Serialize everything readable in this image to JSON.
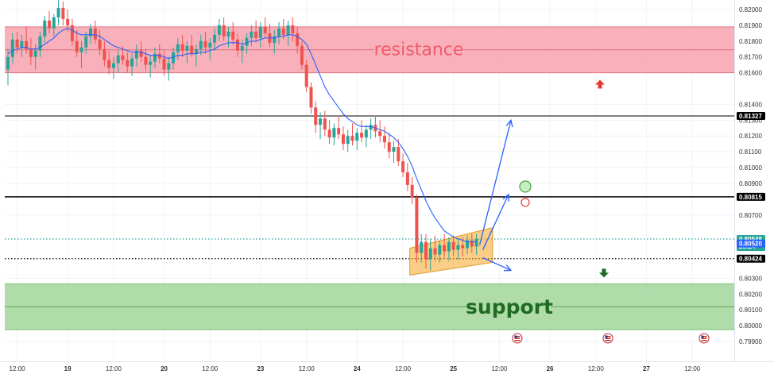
{
  "chart_data": {
    "type": "candlestick",
    "y_axis": {
      "position": "right",
      "range": [
        0.7985,
        0.8205
      ],
      "tick_labels": [
        "0.82000",
        "0.81900",
        "0.81800",
        "0.81700",
        "0.81600",
        "0.81400",
        "0.81300",
        "0.81200",
        "0.81100",
        "0.81000",
        "0.80900",
        "0.80700",
        "0.80300",
        "0.80200",
        "0.80100",
        "0.80000",
        "0.79900"
      ],
      "tick_values": [
        0.82,
        0.819,
        0.818,
        0.817,
        0.816,
        0.814,
        0.813,
        0.812,
        0.811,
        0.81,
        0.809,
        0.807,
        0.803,
        0.802,
        0.801,
        0.8,
        0.799
      ]
    },
    "x_axis": {
      "tick_labels": [
        "12:00",
        "19",
        "12:00",
        "20",
        "12:00",
        "23",
        "12:00",
        "24",
        "12:00",
        "25",
        "12:00",
        "26",
        "12:00",
        "27",
        "12:00"
      ],
      "tick_index": [
        2,
        13,
        23,
        34,
        44,
        55,
        65,
        76,
        86,
        97,
        107,
        118,
        128,
        139,
        149
      ]
    },
    "ohlc": [
      [
        0.8162,
        0.8175,
        0.8152,
        0.817
      ],
      [
        0.817,
        0.8185,
        0.8166,
        0.8181
      ],
      [
        0.8181,
        0.8186,
        0.8172,
        0.8176
      ],
      [
        0.8176,
        0.8184,
        0.817,
        0.818
      ],
      [
        0.818,
        0.8189,
        0.8172,
        0.8175
      ],
      [
        0.8175,
        0.8182,
        0.8165,
        0.817
      ],
      [
        0.817,
        0.8178,
        0.8162,
        0.8174
      ],
      [
        0.8174,
        0.8186,
        0.817,
        0.8183
      ],
      [
        0.8183,
        0.8196,
        0.8179,
        0.8193
      ],
      [
        0.8193,
        0.8199,
        0.8185,
        0.8188
      ],
      [
        0.8188,
        0.8197,
        0.8183,
        0.8195
      ],
      [
        0.8195,
        0.8206,
        0.819,
        0.8201
      ],
      [
        0.8201,
        0.8205,
        0.819,
        0.8194
      ],
      [
        0.8194,
        0.82,
        0.8186,
        0.819
      ],
      [
        0.819,
        0.8194,
        0.8177,
        0.818
      ],
      [
        0.818,
        0.8187,
        0.817,
        0.8173
      ],
      [
        0.8173,
        0.818,
        0.8163,
        0.8176
      ],
      [
        0.8176,
        0.8186,
        0.8172,
        0.8183
      ],
      [
        0.8183,
        0.8191,
        0.8178,
        0.8188
      ],
      [
        0.8188,
        0.8193,
        0.8178,
        0.8181
      ],
      [
        0.8181,
        0.8187,
        0.8171,
        0.8175
      ],
      [
        0.8175,
        0.818,
        0.8164,
        0.8168
      ],
      [
        0.8168,
        0.8174,
        0.8159,
        0.8163
      ],
      [
        0.8163,
        0.817,
        0.8156,
        0.8166
      ],
      [
        0.8166,
        0.8174,
        0.816,
        0.8171
      ],
      [
        0.8171,
        0.8177,
        0.8165,
        0.8168
      ],
      [
        0.8168,
        0.8173,
        0.816,
        0.8164
      ],
      [
        0.8164,
        0.8172,
        0.8158,
        0.8169
      ],
      [
        0.8169,
        0.8178,
        0.8164,
        0.8174
      ],
      [
        0.8174,
        0.818,
        0.8167,
        0.817
      ],
      [
        0.817,
        0.8175,
        0.8161,
        0.8165
      ],
      [
        0.8165,
        0.8171,
        0.8157,
        0.8167
      ],
      [
        0.8167,
        0.8176,
        0.8163,
        0.8172
      ],
      [
        0.8172,
        0.8178,
        0.8166,
        0.8169
      ],
      [
        0.8169,
        0.8174,
        0.8158,
        0.8162
      ],
      [
        0.8162,
        0.817,
        0.8155,
        0.8166
      ],
      [
        0.8166,
        0.8176,
        0.8162,
        0.8173
      ],
      [
        0.8173,
        0.8182,
        0.8168,
        0.8178
      ],
      [
        0.8178,
        0.8184,
        0.817,
        0.8174
      ],
      [
        0.8174,
        0.818,
        0.8166,
        0.8177
      ],
      [
        0.8177,
        0.8184,
        0.817,
        0.8172
      ],
      [
        0.8172,
        0.8178,
        0.8164,
        0.8175
      ],
      [
        0.8175,
        0.8184,
        0.8171,
        0.818
      ],
      [
        0.818,
        0.8186,
        0.8172,
        0.8176
      ],
      [
        0.8176,
        0.8182,
        0.8168,
        0.8179
      ],
      [
        0.8179,
        0.8188,
        0.8174,
        0.8184
      ],
      [
        0.8184,
        0.8194,
        0.818,
        0.819
      ],
      [
        0.819,
        0.8195,
        0.818,
        0.8183
      ],
      [
        0.8183,
        0.8189,
        0.8176,
        0.8186
      ],
      [
        0.8186,
        0.8192,
        0.8178,
        0.8181
      ],
      [
        0.8181,
        0.8185,
        0.817,
        0.8174
      ],
      [
        0.8174,
        0.8181,
        0.8166,
        0.8177
      ],
      [
        0.8177,
        0.8185,
        0.8172,
        0.8182
      ],
      [
        0.8182,
        0.819,
        0.8177,
        0.8186
      ],
      [
        0.8186,
        0.8193,
        0.8179,
        0.8182
      ],
      [
        0.8182,
        0.8192,
        0.8176,
        0.8189
      ],
      [
        0.8189,
        0.8195,
        0.8182,
        0.8185
      ],
      [
        0.8185,
        0.8191,
        0.8176,
        0.8179
      ],
      [
        0.8179,
        0.8187,
        0.8172,
        0.8183
      ],
      [
        0.8183,
        0.8192,
        0.8178,
        0.8188
      ],
      [
        0.8188,
        0.8194,
        0.8181,
        0.8184
      ],
      [
        0.8184,
        0.8193,
        0.8177,
        0.819
      ],
      [
        0.819,
        0.8195,
        0.818,
        0.8185
      ],
      [
        0.8185,
        0.8189,
        0.8172,
        0.8177
      ],
      [
        0.8177,
        0.818,
        0.8162,
        0.8165
      ],
      [
        0.8165,
        0.8168,
        0.8148,
        0.8151
      ],
      [
        0.8151,
        0.8154,
        0.8134,
        0.8138
      ],
      [
        0.8138,
        0.8142,
        0.8122,
        0.8127
      ],
      [
        0.8127,
        0.8135,
        0.8118,
        0.8131
      ],
      [
        0.8131,
        0.8136,
        0.812,
        0.8124
      ],
      [
        0.8124,
        0.813,
        0.8115,
        0.8119
      ],
      [
        0.8119,
        0.8128,
        0.8114,
        0.8125
      ],
      [
        0.8125,
        0.8133,
        0.8118,
        0.8121
      ],
      [
        0.8121,
        0.8126,
        0.8111,
        0.8115
      ],
      [
        0.8115,
        0.8124,
        0.811,
        0.812
      ],
      [
        0.812,
        0.8128,
        0.8114,
        0.8117
      ],
      [
        0.8117,
        0.8125,
        0.8111,
        0.8122
      ],
      [
        0.8122,
        0.813,
        0.8116,
        0.8119
      ],
      [
        0.8119,
        0.8127,
        0.8113,
        0.8124
      ],
      [
        0.8124,
        0.8131,
        0.8118,
        0.8127
      ],
      [
        0.8127,
        0.8133,
        0.8119,
        0.8123
      ],
      [
        0.8123,
        0.813,
        0.8116,
        0.812
      ],
      [
        0.812,
        0.8126,
        0.8112,
        0.8116
      ],
      [
        0.8116,
        0.8122,
        0.8106,
        0.811
      ],
      [
        0.811,
        0.8117,
        0.8103,
        0.8113
      ],
      [
        0.8113,
        0.8118,
        0.8101,
        0.8104
      ],
      [
        0.8104,
        0.8109,
        0.8094,
        0.8097
      ],
      [
        0.8097,
        0.8103,
        0.8085,
        0.8089
      ],
      [
        0.8089,
        0.8094,
        0.8077,
        0.8081
      ],
      [
        0.8081,
        0.8083,
        0.804,
        0.8046
      ],
      [
        0.8046,
        0.8058,
        0.804,
        0.8053
      ],
      [
        0.8053,
        0.8058,
        0.8036,
        0.8042
      ],
      [
        0.8042,
        0.8055,
        0.8035,
        0.8049
      ],
      [
        0.8049,
        0.8057,
        0.8041,
        0.8045
      ],
      [
        0.8045,
        0.8054,
        0.804,
        0.8051
      ],
      [
        0.8051,
        0.8058,
        0.8043,
        0.8047
      ],
      [
        0.8047,
        0.8056,
        0.8041,
        0.8053
      ],
      [
        0.8053,
        0.8057,
        0.8044,
        0.8048
      ],
      [
        0.8048,
        0.8055,
        0.8042,
        0.8051
      ],
      [
        0.8051,
        0.8056,
        0.8044,
        0.8049
      ],
      [
        0.8049,
        0.8057,
        0.8045,
        0.8054
      ],
      [
        0.8054,
        0.8058,
        0.8046,
        0.805
      ],
      [
        0.805,
        0.8058,
        0.8045,
        0.8055
      ]
    ],
    "ema": [
      0.8172,
      0.8174,
      0.8175,
      0.8176,
      0.8176,
      0.8175,
      0.8175,
      0.8176,
      0.8178,
      0.818,
      0.8182,
      0.8185,
      0.8187,
      0.8188,
      0.8187,
      0.8185,
      0.8184,
      0.8184,
      0.8184,
      0.8184,
      0.8183,
      0.8181,
      0.8179,
      0.8177,
      0.8176,
      0.8175,
      0.8174,
      0.8173,
      0.8173,
      0.8173,
      0.8172,
      0.8171,
      0.8171,
      0.8171,
      0.817,
      0.8169,
      0.817,
      0.8171,
      0.8171,
      0.8172,
      0.8172,
      0.8172,
      0.8173,
      0.8173,
      0.8174,
      0.8175,
      0.8177,
      0.8178,
      0.8179,
      0.8179,
      0.8179,
      0.8178,
      0.8179,
      0.818,
      0.818,
      0.8181,
      0.8182,
      0.8182,
      0.8182,
      0.8183,
      0.8183,
      0.8184,
      0.8184,
      0.8183,
      0.8181,
      0.8178,
      0.8172,
      0.8165,
      0.8158,
      0.8151,
      0.8146,
      0.8142,
      0.8138,
      0.8134,
      0.8131,
      0.8129,
      0.8127,
      0.8126,
      0.8126,
      0.8126,
      0.8125,
      0.8124,
      0.8123,
      0.8121,
      0.8119,
      0.8116,
      0.8112,
      0.8107,
      0.8101,
      0.8093,
      0.8086,
      0.8079,
      0.8073,
      0.8068,
      0.8064,
      0.806,
      0.8058,
      0.8056,
      0.8055,
      0.8054,
      0.8053,
      0.8053,
      0.8053
    ],
    "zones": [
      {
        "label": "resistance",
        "top": 0.8189,
        "bottom": 0.816,
        "color": "#f7a8b2",
        "text_color": "#f05b6c"
      },
      {
        "label": "support",
        "top": 0.80265,
        "bottom": 0.79975,
        "color": "#a6d8a0",
        "text_color": "#1f6b22"
      }
    ],
    "price_lines": [
      {
        "value": 0.81327,
        "label": "0.81327",
        "style": "solid",
        "color": "#000000",
        "tag_color": "#000000"
      },
      {
        "value": 0.80815,
        "label": "0.80815",
        "style": "solid-bold",
        "color": "#000000",
        "tag_color": "#000000"
      },
      {
        "value": 0.80424,
        "label": "0.80424",
        "style": "dotted",
        "color": "#000000",
        "tag_color": "#000000"
      },
      {
        "value": 0.80548,
        "label": "0.80548",
        "style": "dotted",
        "color": "#26a69a",
        "tag_color": "#26a69a",
        "sub": "28:24"
      },
      {
        "value": 0.8052,
        "label": "0.80520",
        "style": "none",
        "color": "#2962ff",
        "tag_color": "#2962ff"
      }
    ],
    "colors": {
      "up": "#26a69a",
      "down": "#ef5350",
      "ema": "#2962ff",
      "channel": "#f5a623",
      "arrow": "#2962ff"
    }
  }
}
